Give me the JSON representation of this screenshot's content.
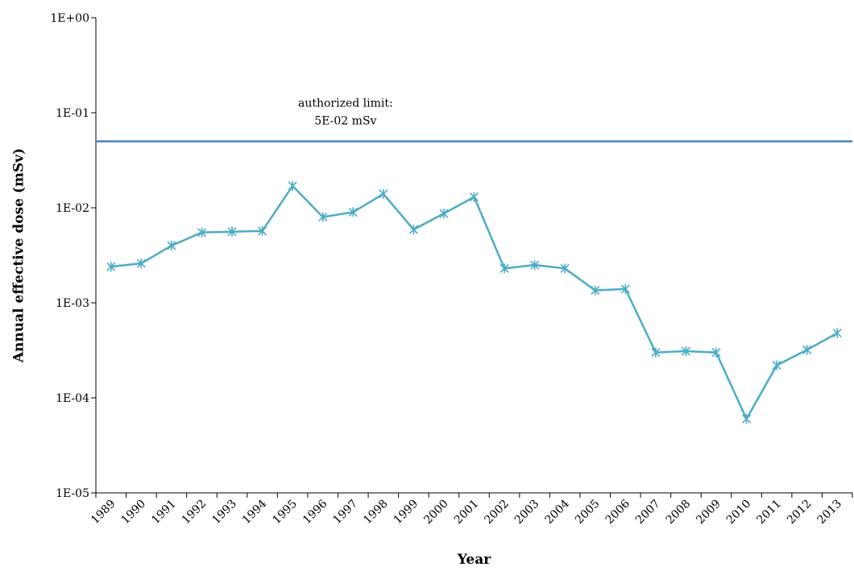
{
  "chart_data": {
    "type": "line",
    "title": "",
    "xlabel": "Year",
    "ylabel": "Annual effective dose (mSv)",
    "y_scale": "log",
    "ylim": [
      1e-05,
      1
    ],
    "y_ticks": [
      {
        "value": 1,
        "label": "1E+00"
      },
      {
        "value": 0.1,
        "label": "1E-01"
      },
      {
        "value": 0.01,
        "label": "1E-02"
      },
      {
        "value": 0.001,
        "label": "1E-03"
      },
      {
        "value": 0.0001,
        "label": "1E-04"
      },
      {
        "value": 1e-05,
        "label": "1E-05"
      }
    ],
    "categories": [
      "1989",
      "1990",
      "1991",
      "1992",
      "1993",
      "1994",
      "1995",
      "1996",
      "1997",
      "1998",
      "1999",
      "2000",
      "2001",
      "2002",
      "2003",
      "2004",
      "2005",
      "2006",
      "2007",
      "2008",
      "2009",
      "2010",
      "2011",
      "2012",
      "2013"
    ],
    "series": [
      {
        "values": [
          0.0024,
          0.0026,
          0.004,
          0.0055,
          0.0056,
          0.0057,
          0.017,
          0.008,
          0.009,
          0.014,
          0.0059,
          0.0087,
          0.013,
          0.0023,
          0.0025,
          0.0023,
          0.00135,
          0.0014,
          0.0003,
          0.00031,
          0.0003,
          6e-05,
          0.00022,
          0.00032,
          0.00048
        ],
        "color": "#4bacc6",
        "marker": "asterisk"
      }
    ],
    "reference_line": {
      "value": 0.05,
      "color": "#4f81bd",
      "label_line1": "authorized limit:",
      "label_line2": "5E-02 mSv"
    },
    "grid": false,
    "legend": "none"
  }
}
